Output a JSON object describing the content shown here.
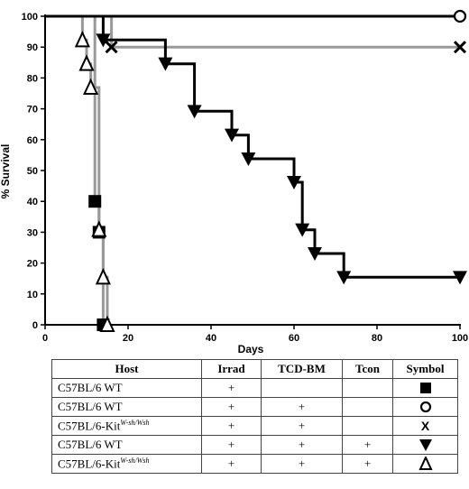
{
  "chart_data": {
    "type": "line",
    "subtype": "kaplan-meier step",
    "xlabel": "Days",
    "ylabel": "% Survival",
    "xlim": [
      0,
      100
    ],
    "ylim": [
      0,
      100
    ],
    "x_ticks": [
      "0",
      "20",
      "40",
      "60",
      "80",
      "100"
    ],
    "y_ticks": [
      "0",
      "10",
      "20",
      "30",
      "40",
      "50",
      "60",
      "70",
      "80",
      "90",
      "100"
    ],
    "grid": false,
    "series": [
      {
        "symbol": "square",
        "color": "#999999",
        "steps": [
          [
            0,
            100
          ],
          [
            12,
            100
          ],
          [
            12,
            40
          ],
          [
            13,
            40
          ],
          [
            13,
            30
          ],
          [
            14,
            30
          ],
          [
            14,
            0
          ],
          [
            15,
            0
          ]
        ],
        "markers": [
          [
            12,
            40
          ],
          [
            13,
            30
          ],
          [
            14,
            0
          ]
        ]
      },
      {
        "symbol": "circle",
        "color": "#000000",
        "steps": [
          [
            0,
            100
          ],
          [
            100,
            100
          ]
        ],
        "markers": [
          [
            100,
            100
          ]
        ]
      },
      {
        "symbol": "x",
        "color": "#999999",
        "steps": [
          [
            0,
            100
          ],
          [
            16,
            100
          ],
          [
            16,
            90
          ],
          [
            100,
            90
          ]
        ],
        "markers": [
          [
            16,
            90
          ],
          [
            100,
            90
          ]
        ]
      },
      {
        "symbol": "triangle-down",
        "color": "#000000",
        "steps": [
          [
            0,
            100
          ],
          [
            14,
            100
          ],
          [
            14,
            92.3
          ],
          [
            29,
            92.3
          ],
          [
            29,
            84.6
          ],
          [
            36,
            84.6
          ],
          [
            36,
            69.2
          ],
          [
            45,
            69.2
          ],
          [
            45,
            61.5
          ],
          [
            49,
            61.5
          ],
          [
            49,
            53.8
          ],
          [
            60,
            53.8
          ],
          [
            60,
            46.2
          ],
          [
            62,
            46.2
          ],
          [
            62,
            30.8
          ],
          [
            65,
            30.8
          ],
          [
            65,
            23.1
          ],
          [
            72,
            23.1
          ],
          [
            72,
            15.4
          ],
          [
            100,
            15.4
          ]
        ],
        "markers": [
          [
            14,
            92.3
          ],
          [
            29,
            84.6
          ],
          [
            36,
            69.2
          ],
          [
            45,
            61.5
          ],
          [
            49,
            53.8
          ],
          [
            60,
            46.2
          ],
          [
            62,
            30.8
          ],
          [
            65,
            23.1
          ],
          [
            72,
            15.4
          ],
          [
            100,
            15.4
          ]
        ]
      },
      {
        "symbol": "triangle-up",
        "color": "#999999",
        "steps": [
          [
            0,
            100
          ],
          [
            9,
            100
          ],
          [
            9,
            92.3
          ],
          [
            10,
            92.3
          ],
          [
            10,
            84.6
          ],
          [
            11,
            84.6
          ],
          [
            11,
            76.9
          ],
          [
            13,
            76.9
          ],
          [
            13,
            30.8
          ],
          [
            14,
            30.8
          ],
          [
            14,
            15.4
          ],
          [
            15,
            15.4
          ],
          [
            15,
            0
          ],
          [
            16,
            0
          ]
        ],
        "markers": [
          [
            9,
            92.3
          ],
          [
            10,
            84.6
          ],
          [
            11,
            76.9
          ],
          [
            13,
            30.8
          ],
          [
            14,
            15.4
          ],
          [
            15,
            0
          ]
        ]
      }
    ]
  },
  "legend_table": {
    "headers": [
      "Host",
      "Irrad",
      "TCD-BM",
      "Tcon",
      "Symbol"
    ],
    "rows": [
      {
        "host": "C57BL/6 WT",
        "host_sup": "",
        "irrad": "+",
        "tcd_bm": "",
        "tcon": "",
        "symbol": "square"
      },
      {
        "host": "C57BL/6 WT",
        "host_sup": "",
        "irrad": "+",
        "tcd_bm": "+",
        "tcon": "",
        "symbol": "circle"
      },
      {
        "host": "C57BL/6-Kit",
        "host_sup": "W-sh/Wsh",
        "irrad": "+",
        "tcd_bm": "+",
        "tcon": "",
        "symbol": "x",
        "symbol_text": "X"
      },
      {
        "host": "C57BL/6 WT",
        "host_sup": "",
        "irrad": "+",
        "tcd_bm": "+",
        "tcon": "+",
        "symbol": "triangle-down"
      },
      {
        "host": "C57BL/6-Kit",
        "host_sup": "W-sh/Wsh",
        "irrad": "+",
        "tcd_bm": "+",
        "tcon": "+",
        "symbol": "triangle-up"
      }
    ]
  }
}
